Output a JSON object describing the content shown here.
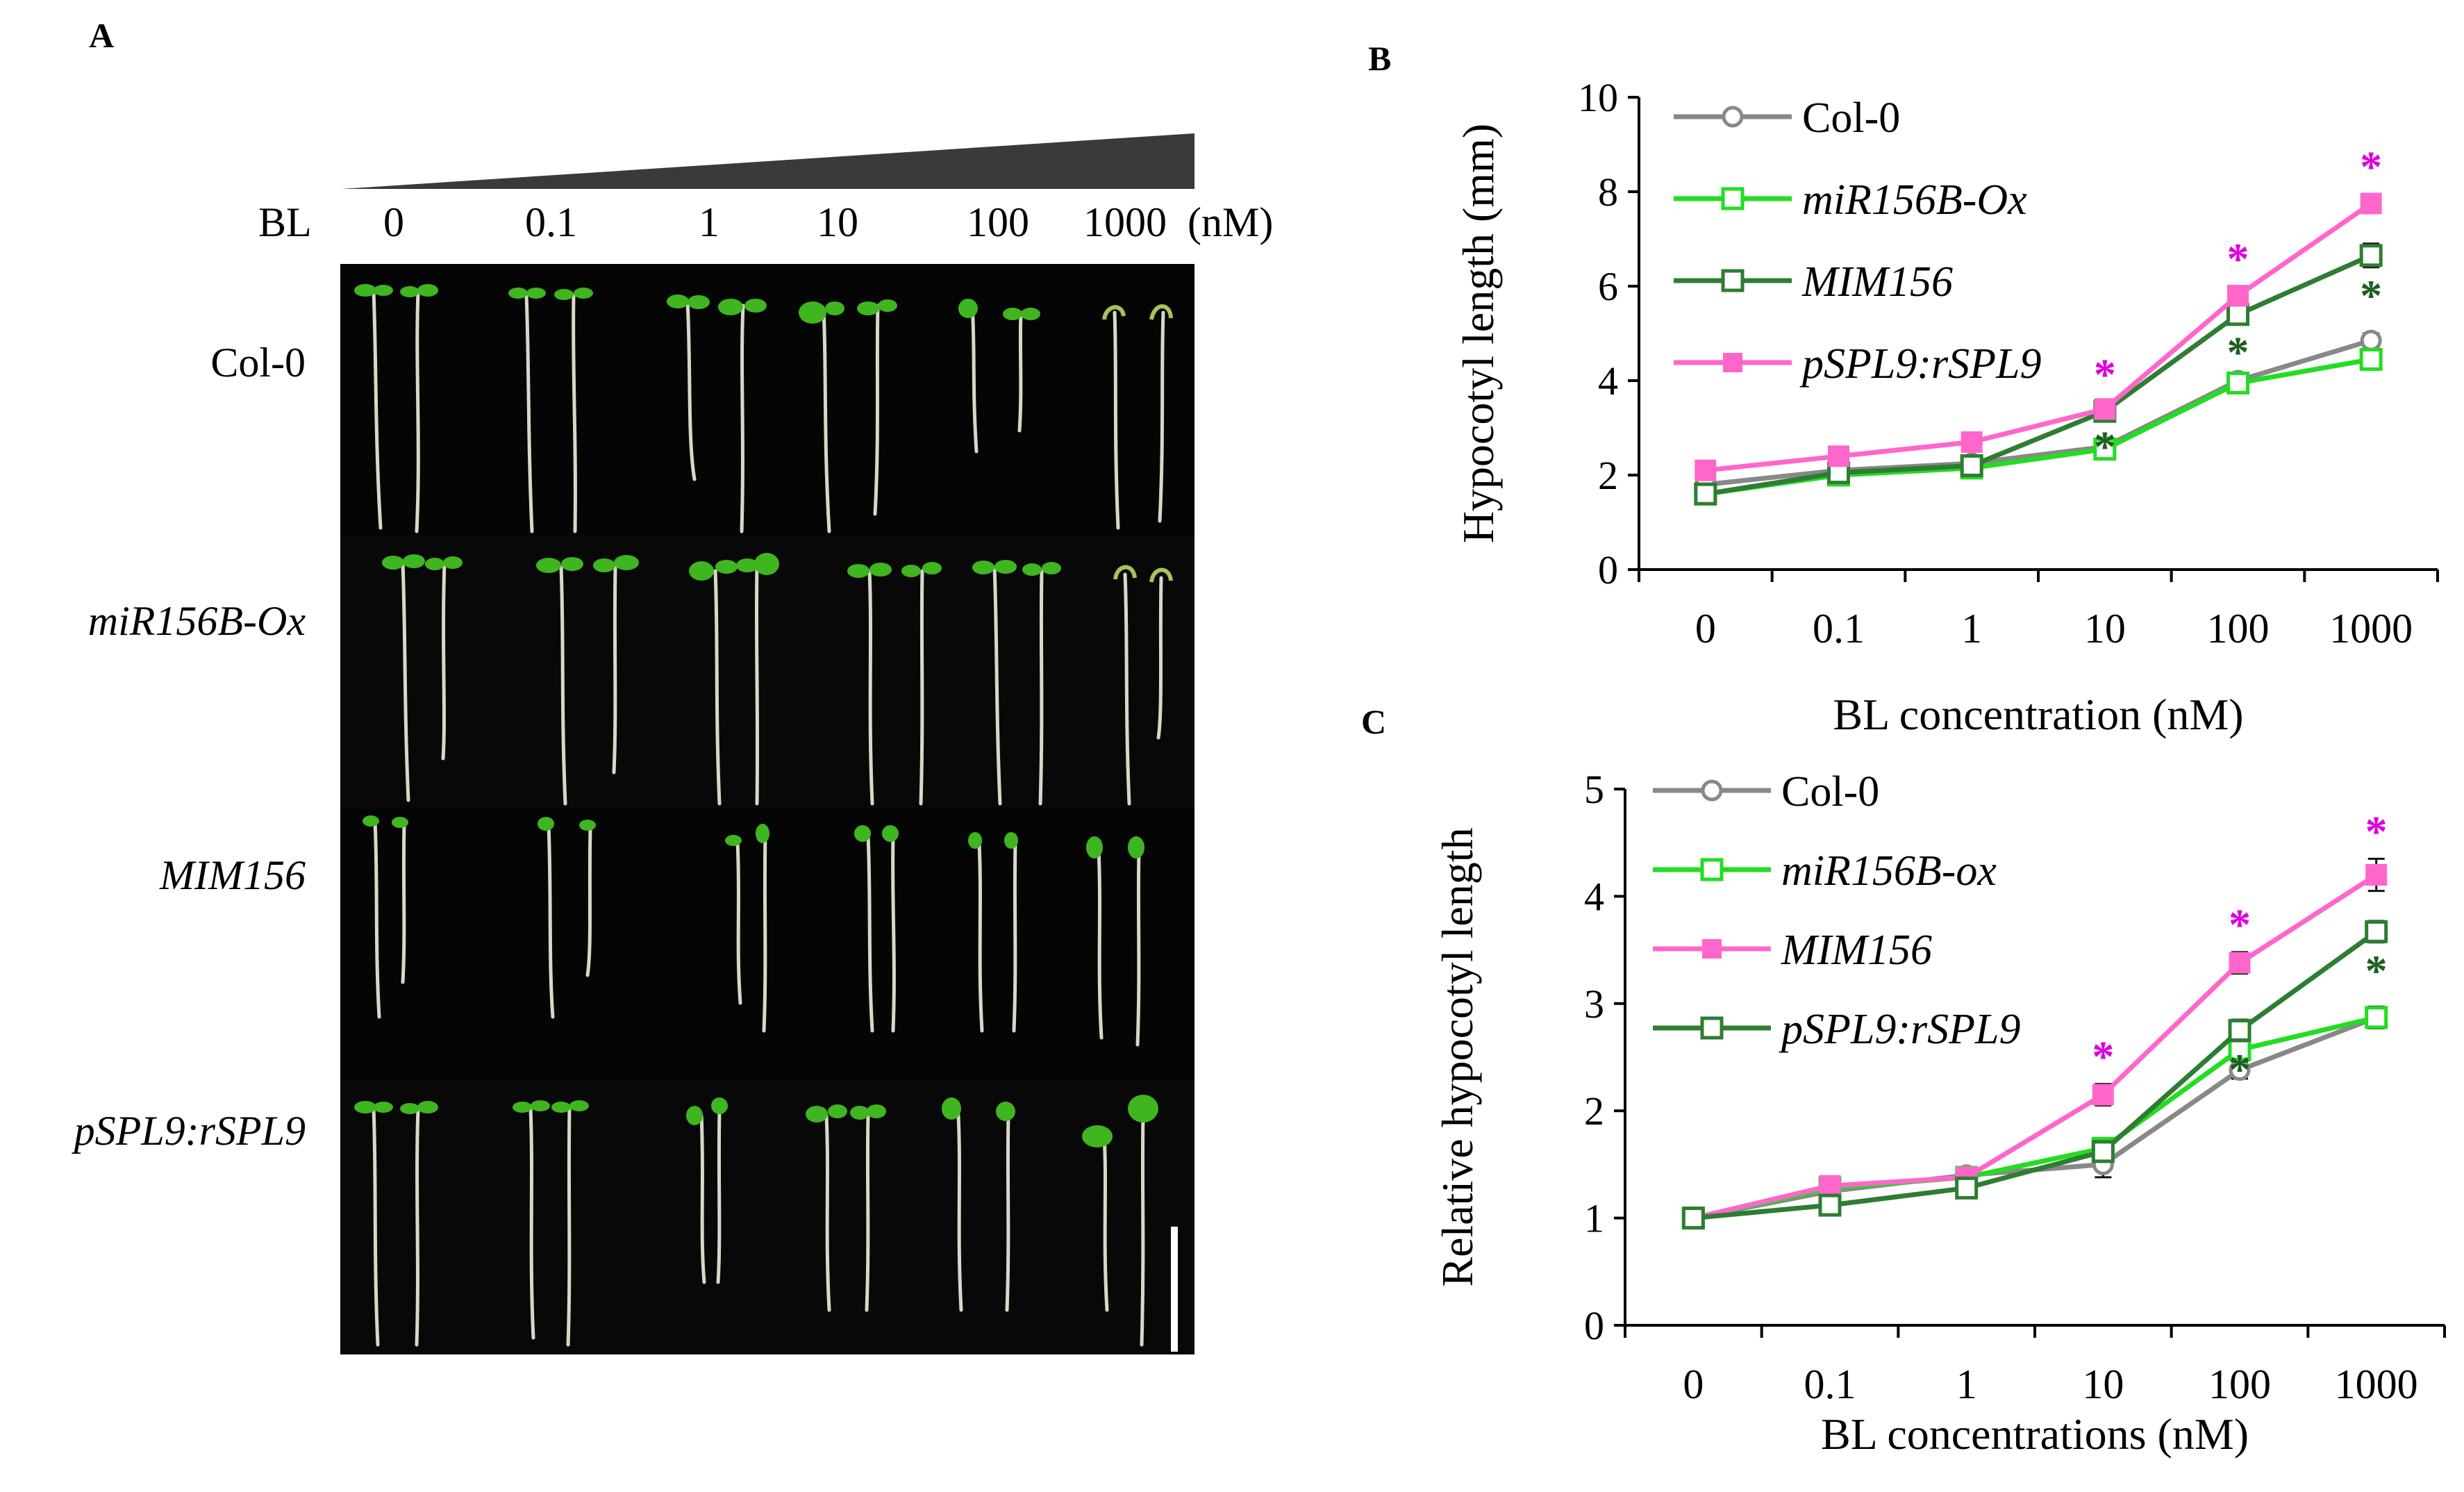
{
  "panel_a": {
    "letter": "A",
    "bl_label": "BL",
    "conc_labels": [
      "0",
      "0.1",
      "1",
      "10",
      "100",
      "1000",
      "(nM)"
    ],
    "row_labels": [
      {
        "text": "Col-0",
        "italic": false
      },
      {
        "text": "miR156B-Ox",
        "italic": true
      },
      {
        "text": "MIM156",
        "italic": true
      },
      {
        "text": "pSPL9:rSPL9",
        "italic": true
      }
    ],
    "colors": {
      "background": "#030303",
      "cotyledon": "#3fb51f",
      "hypocotyl": "#d8d8c8",
      "wedge": "#3a3a3a",
      "scale_bar": "#ffffff"
    }
  },
  "chart_data": [
    {
      "panel": "B",
      "type": "line",
      "categories": [
        "0",
        "0.1",
        "1",
        "10",
        "100",
        "1000"
      ],
      "xlabel": "BL concentration (nM)",
      "ylabel": "Hypocotyl length (mm)",
      "ylim": [
        0,
        10
      ],
      "yticks": [
        "0",
        "2",
        "4",
        "6",
        "8",
        "10"
      ],
      "legend_position": "top-left",
      "series": [
        {
          "name": "Col-0",
          "italic": false,
          "color": "#888888",
          "marker": "open-circle",
          "values": [
            1.8,
            2.1,
            2.25,
            2.6,
            4.0,
            4.85
          ],
          "errors": [
            0.1,
            0.1,
            0.1,
            0.12,
            0.15,
            0.15
          ],
          "asterisks": [
            null,
            null,
            null,
            null,
            null,
            null
          ]
        },
        {
          "name": "miR156B-Ox",
          "italic": true,
          "color": "#22dd22",
          "marker": "open-square",
          "values": [
            1.6,
            2.0,
            2.15,
            2.55,
            3.95,
            4.45
          ],
          "errors": [
            0.1,
            0.1,
            0.1,
            0.12,
            0.15,
            0.15
          ],
          "asterisks": [
            null,
            null,
            null,
            null,
            null,
            null
          ]
        },
        {
          "name": "MIM156",
          "italic": true,
          "color": "#2e7d32",
          "marker": "open-square",
          "values": [
            1.6,
            2.05,
            2.2,
            3.35,
            5.4,
            6.65
          ],
          "errors": [
            0.1,
            0.1,
            0.1,
            0.15,
            0.2,
            0.25
          ],
          "asterisks": [
            null,
            null,
            null,
            "*",
            "*",
            "*"
          ],
          "asterisk_color": "#1b5e20"
        },
        {
          "name": "pSPL9:rSPL9",
          "italic": true,
          "color": "#ff66cc",
          "marker": "filled-square",
          "values": [
            2.1,
            2.4,
            2.7,
            3.4,
            5.8,
            7.75
          ],
          "errors": [
            0.1,
            0.1,
            0.1,
            0.15,
            0.2,
            0.2
          ],
          "asterisks": [
            null,
            null,
            null,
            "*",
            "*",
            "*"
          ],
          "asterisk_color": "#dd00dd"
        }
      ]
    },
    {
      "panel": "C",
      "type": "line",
      "categories": [
        "0",
        "0.1",
        "1",
        "10",
        "100",
        "1000"
      ],
      "xlabel": "BL concentrations (nM)",
      "ylabel": "Relative hypocotyl length",
      "ylim": [
        0,
        5
      ],
      "yticks": [
        "0",
        "1",
        "2",
        "3",
        "4",
        "5"
      ],
      "legend_position": "top-left",
      "series": [
        {
          "name": "Col-0",
          "italic": false,
          "color": "#888888",
          "marker": "open-circle",
          "values": [
            1.0,
            1.25,
            1.4,
            1.5,
            2.38,
            2.87
          ],
          "errors": [
            0.03,
            0.05,
            0.05,
            0.12,
            0.08,
            0.1
          ],
          "asterisks": [
            null,
            null,
            null,
            null,
            null,
            null
          ]
        },
        {
          "name": "miR156B-ox",
          "italic": true,
          "color": "#22dd22",
          "marker": "open-square",
          "values": [
            1.0,
            1.28,
            1.38,
            1.65,
            2.57,
            2.87
          ],
          "errors": [
            0.03,
            0.05,
            0.05,
            0.06,
            0.08,
            0.1
          ],
          "asterisks": [
            null,
            null,
            null,
            null,
            null,
            null
          ]
        },
        {
          "name": "MIM156",
          "italic": true,
          "color": "#ff66cc",
          "marker": "filled-square",
          "values": [
            1.0,
            1.3,
            1.38,
            2.15,
            3.38,
            4.2
          ],
          "errors": [
            0.03,
            0.05,
            0.05,
            0.1,
            0.1,
            0.15
          ],
          "asterisks": [
            null,
            null,
            null,
            "*",
            "*",
            "*"
          ],
          "asterisk_color": "#dd00dd"
        },
        {
          "name": "pSPL9:rSPL9",
          "italic": true,
          "color": "#2e7d32",
          "marker": "open-square",
          "values": [
            1.0,
            1.12,
            1.28,
            1.62,
            2.75,
            3.67
          ],
          "errors": [
            0.03,
            0.05,
            0.05,
            0.08,
            0.1,
            0.1
          ],
          "asterisks": [
            null,
            null,
            null,
            null,
            "*",
            "*"
          ],
          "asterisk_color": "#1b5e20"
        }
      ]
    }
  ]
}
